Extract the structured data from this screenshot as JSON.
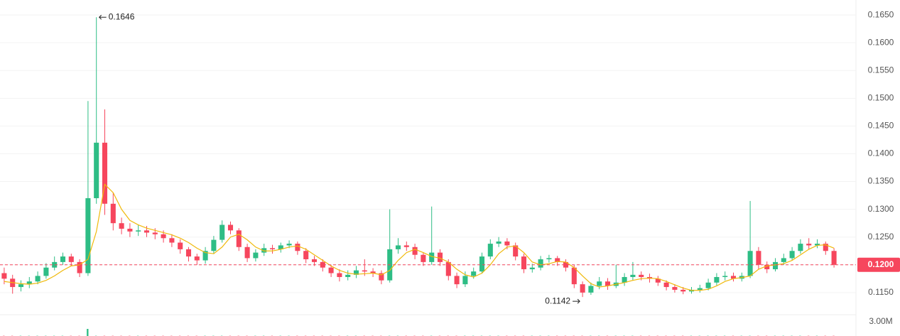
{
  "chart_data": {
    "type": "candlestick",
    "open": [
      0.1185,
      0.1175,
      0.116,
      0.1165,
      0.117,
      0.118,
      0.1195,
      0.1205,
      0.1215,
      0.1205,
      0.1185,
      0.132,
      0.142,
      0.131,
      0.1275,
      0.1265,
      0.126,
      0.1262,
      0.1258,
      0.1255,
      0.1248,
      0.124,
      0.1228,
      0.1215,
      0.1208,
      0.1225,
      0.1245,
      0.1272,
      0.1262,
      0.1232,
      0.1212,
      0.1222,
      0.123,
      0.1228,
      0.1235,
      0.1238,
      0.1225,
      0.121,
      0.1205,
      0.1195,
      0.1185,
      0.1178,
      0.1182,
      0.119,
      0.1188,
      0.1185,
      0.1172,
      0.1228,
      0.1235,
      0.1232,
      0.1218,
      0.1205,
      0.1222,
      0.1205,
      0.118,
      0.1165,
      0.118,
      0.1188,
      0.1215,
      0.1238,
      0.1242,
      0.1235,
      0.1215,
      0.1192,
      0.1195,
      0.121,
      0.1212,
      0.1205,
      0.1195,
      0.1165,
      0.115,
      0.1162,
      0.117,
      0.1162,
      0.1168,
      0.1178,
      0.1182,
      0.1178,
      0.1175,
      0.1168,
      0.116,
      0.1155,
      0.1152,
      0.1155,
      0.1158,
      0.1168,
      0.1178,
      0.118,
      0.1175,
      0.118,
      0.1225,
      0.12,
      0.1192,
      0.1205,
      0.1212,
      0.1225,
      0.1238,
      0.1235,
      0.1238,
      0.1225
    ],
    "high": [
      0.1195,
      0.1182,
      0.1172,
      0.1178,
      0.1188,
      0.1203,
      0.1215,
      0.1222,
      0.122,
      0.121,
      0.1495,
      0.1646,
      0.148,
      0.133,
      0.1285,
      0.1275,
      0.1272,
      0.127,
      0.1266,
      0.1262,
      0.1255,
      0.1246,
      0.1232,
      0.122,
      0.1232,
      0.1252,
      0.128,
      0.1278,
      0.1266,
      0.1238,
      0.1228,
      0.1238,
      0.1236,
      0.124,
      0.1244,
      0.1242,
      0.123,
      0.1216,
      0.121,
      0.12,
      0.1192,
      0.119,
      0.1198,
      0.121,
      0.1194,
      0.119,
      0.13,
      0.1248,
      0.1242,
      0.1238,
      0.1222,
      0.1305,
      0.1228,
      0.121,
      0.1186,
      0.1188,
      0.1195,
      0.1222,
      0.1246,
      0.125,
      0.1248,
      0.124,
      0.122,
      0.1202,
      0.1216,
      0.1218,
      0.1216,
      0.121,
      0.12,
      0.117,
      0.1168,
      0.1178,
      0.1176,
      0.12,
      0.1185,
      0.1205,
      0.1188,
      0.1184,
      0.118,
      0.1172,
      0.1165,
      0.116,
      0.116,
      0.1164,
      0.1175,
      0.1185,
      0.1188,
      0.1186,
      0.1186,
      0.1315,
      0.1232,
      0.1206,
      0.1212,
      0.122,
      0.1232,
      0.1246,
      0.1248,
      0.1246,
      0.1242,
      0.123
    ],
    "low": [
      0.1165,
      0.1148,
      0.1152,
      0.1158,
      0.1165,
      0.1175,
      0.119,
      0.12,
      0.1198,
      0.1178,
      0.118,
      0.131,
      0.129,
      0.1262,
      0.1255,
      0.125,
      0.1252,
      0.125,
      0.1246,
      0.124,
      0.1232,
      0.122,
      0.1206,
      0.12,
      0.1202,
      0.122,
      0.124,
      0.1255,
      0.1225,
      0.1205,
      0.1206,
      0.1216,
      0.122,
      0.1222,
      0.123,
      0.1218,
      0.1203,
      0.1198,
      0.1188,
      0.1178,
      0.117,
      0.1172,
      0.1176,
      0.118,
      0.1178,
      0.1165,
      0.1168,
      0.122,
      0.1225,
      0.121,
      0.1198,
      0.12,
      0.1198,
      0.1172,
      0.1158,
      0.116,
      0.1175,
      0.1184,
      0.121,
      0.1232,
      0.1228,
      0.1208,
      0.1185,
      0.1186,
      0.119,
      0.1204,
      0.1198,
      0.1188,
      0.1158,
      0.1142,
      0.1146,
      0.1156,
      0.1155,
      0.1158,
      0.1162,
      0.1172,
      0.1172,
      0.1168,
      0.1162,
      0.1154,
      0.115,
      0.1147,
      0.1148,
      0.115,
      0.1154,
      0.1163,
      0.1172,
      0.117,
      0.117,
      0.1176,
      0.1192,
      0.1185,
      0.1188,
      0.12,
      0.1208,
      0.122,
      0.1228,
      0.123,
      0.1218,
      0.1195
    ],
    "close": [
      0.1175,
      0.116,
      0.1165,
      0.117,
      0.118,
      0.1195,
      0.1205,
      0.1215,
      0.1205,
      0.1185,
      0.132,
      0.142,
      0.131,
      0.1275,
      0.1265,
      0.126,
      0.1262,
      0.1258,
      0.1255,
      0.1248,
      0.124,
      0.1228,
      0.1215,
      0.1208,
      0.1225,
      0.1245,
      0.1272,
      0.1262,
      0.1232,
      0.1212,
      0.1222,
      0.123,
      0.1228,
      0.1235,
      0.1238,
      0.1225,
      0.121,
      0.1205,
      0.1195,
      0.1185,
      0.1178,
      0.1182,
      0.119,
      0.1188,
      0.1185,
      0.1172,
      0.1228,
      0.1235,
      0.1232,
      0.1218,
      0.1205,
      0.1222,
      0.1205,
      0.118,
      0.1165,
      0.118,
      0.1188,
      0.1215,
      0.1238,
      0.1242,
      0.1235,
      0.1215,
      0.1192,
      0.1195,
      0.121,
      0.1212,
      0.1205,
      0.1195,
      0.1165,
      0.115,
      0.1162,
      0.117,
      0.1162,
      0.1168,
      0.1178,
      0.1182,
      0.1178,
      0.1175,
      0.1168,
      0.116,
      0.1155,
      0.1152,
      0.1155,
      0.1158,
      0.1168,
      0.1178,
      0.118,
      0.1175,
      0.118,
      0.1225,
      0.12,
      0.1192,
      0.1205,
      0.1212,
      0.1225,
      0.1238,
      0.1235,
      0.1238,
      0.1225,
      0.12
    ],
    "up_color": "#2ebd85",
    "down_color": "#f6465d",
    "ma": {
      "color": "#f0b90b",
      "values": [
        0.117,
        0.1168,
        0.1166,
        0.1165,
        0.1167,
        0.1172,
        0.118,
        0.119,
        0.1198,
        0.12,
        0.121,
        0.126,
        0.1345,
        0.133,
        0.13,
        0.128,
        0.1272,
        0.1266,
        0.1262,
        0.1258,
        0.1254,
        0.1248,
        0.124,
        0.123,
        0.1222,
        0.122,
        0.1232,
        0.125,
        0.1255,
        0.1245,
        0.1232,
        0.1225,
        0.1225,
        0.1228,
        0.1232,
        0.1234,
        0.1228,
        0.1218,
        0.1208,
        0.1198,
        0.119,
        0.1185,
        0.1183,
        0.1184,
        0.1185,
        0.1182,
        0.119,
        0.1208,
        0.1222,
        0.1228,
        0.1222,
        0.1215,
        0.1212,
        0.1205,
        0.1192,
        0.1182,
        0.1178,
        0.1185,
        0.12,
        0.122,
        0.1232,
        0.1234,
        0.1222,
        0.1205,
        0.12,
        0.1202,
        0.1206,
        0.1205,
        0.1195,
        0.118,
        0.1166,
        0.116,
        0.1162,
        0.1165,
        0.1168,
        0.1172,
        0.1175,
        0.1176,
        0.1175,
        0.117,
        0.1164,
        0.1158,
        0.1154,
        0.1154,
        0.1156,
        0.1162,
        0.117,
        0.1175,
        0.1177,
        0.118,
        0.1192,
        0.1198,
        0.12,
        0.1202,
        0.1208,
        0.1218,
        0.1228,
        0.1235,
        0.1236,
        0.123
      ]
    },
    "ylim": [
      0.1114,
      0.1677
    ],
    "yticks": [
      {
        "value": 0.115,
        "label": "0.1150"
      },
      {
        "value": 0.12,
        "label": "0.1200"
      },
      {
        "value": 0.125,
        "label": "0.1250"
      },
      {
        "value": 0.13,
        "label": "0.1300"
      },
      {
        "value": 0.135,
        "label": "0.1350"
      },
      {
        "value": 0.14,
        "label": "0.1400"
      },
      {
        "value": 0.145,
        "label": "0.1450"
      },
      {
        "value": 0.15,
        "label": "0.1500"
      },
      {
        "value": 0.155,
        "label": "0.1550"
      },
      {
        "value": 0.16,
        "label": "0.1600"
      },
      {
        "value": 0.165,
        "label": "0.1650"
      }
    ],
    "grid": true,
    "current_price": {
      "value": 0.12,
      "label": "0.1200",
      "color": "#f6465d"
    },
    "high_marker": {
      "value": 0.1646,
      "label": "0.1646"
    },
    "low_marker": {
      "value": 0.1142,
      "label": "0.1142"
    },
    "volume": {
      "values": [
        50000,
        50000,
        50000,
        50000,
        50000,
        50000,
        50000,
        50000,
        50000,
        50000,
        1500000,
        50000,
        50000,
        50000,
        50000,
        50000,
        50000,
        50000,
        50000,
        50000,
        50000,
        50000,
        50000,
        50000,
        50000,
        50000,
        50000,
        50000,
        50000,
        50000,
        50000,
        50000,
        50000,
        50000,
        50000,
        50000,
        50000,
        50000,
        50000,
        50000,
        50000,
        50000,
        50000,
        50000,
        50000,
        50000,
        50000,
        50000,
        50000,
        50000,
        50000,
        50000,
        50000,
        50000,
        50000,
        50000,
        50000,
        50000,
        50000,
        50000,
        50000,
        50000,
        50000,
        50000,
        50000,
        50000,
        50000,
        50000,
        50000,
        50000,
        50000,
        50000,
        50000,
        50000,
        50000,
        50000,
        50000,
        50000,
        50000,
        50000,
        50000,
        50000,
        50000,
        50000,
        50000,
        50000,
        50000,
        50000,
        50000,
        50000,
        50000,
        50000,
        50000,
        50000,
        50000,
        50000,
        50000,
        50000,
        50000,
        50000
      ],
      "ylim": [
        0,
        4200000
      ],
      "yticks": [
        {
          "value": 3000000,
          "label": "3.00M"
        }
      ]
    }
  }
}
